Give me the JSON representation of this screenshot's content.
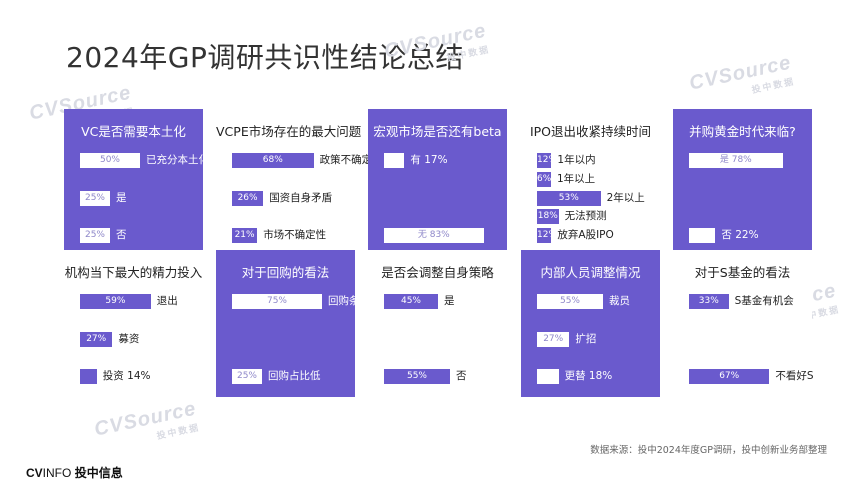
{
  "page_title": "2024年GP调研共识性结论总结",
  "watermark": {
    "text": "CVSource",
    "sub": "投中数据"
  },
  "source_note": "数据来源：投中2024年度GP调研，投中创新业务部整理",
  "logo": {
    "main": "CV",
    "rest": "INFO",
    "cn": "投中信息"
  },
  "colors": {
    "accent": "#6a5acd",
    "bar_text_on_white": "#8e87c9"
  },
  "chart_data": [
    {
      "type": "bar",
      "title": "VC是否需要本土化",
      "theme": "purple",
      "bars": [
        {
          "label": "已充分本土化",
          "value": 50,
          "text": "50%"
        },
        {
          "label": "是",
          "value": 25,
          "text": "25%"
        },
        {
          "label": "否",
          "value": 25,
          "text": "25%"
        }
      ]
    },
    {
      "type": "bar",
      "title": "VCPE市场存在的最大问题",
      "theme": "white",
      "bars": [
        {
          "label": "政策不确定性",
          "value": 68,
          "text": "68%"
        },
        {
          "label": "国资自身矛盾",
          "value": 26,
          "text": "26%"
        },
        {
          "label": "市场不确定性",
          "value": 21,
          "text": "21%"
        }
      ]
    },
    {
      "type": "bar",
      "title": "宏观市场是否还有beta",
      "theme": "purple",
      "bars": [
        {
          "label": "有",
          "value": 17,
          "text": "17%",
          "outside": true
        },
        {
          "label": "无",
          "value": 83,
          "text": "83%",
          "inside_label": true
        }
      ]
    },
    {
      "type": "bar",
      "title": "IPO退出收紧持续时间",
      "theme": "white",
      "bars": [
        {
          "label": "1年以内",
          "value": 12,
          "text": "12%"
        },
        {
          "label": "1年以上",
          "value": 6,
          "text": "6%"
        },
        {
          "label": "2年以上",
          "value": 53,
          "text": "53%"
        },
        {
          "label": "无法预测",
          "value": 18,
          "text": "18%"
        },
        {
          "label": "放弃A股IPO",
          "value": 12,
          "text": "12%"
        }
      ]
    },
    {
      "type": "bar",
      "title": "并购黄金时代来临?",
      "theme": "purple",
      "bars": [
        {
          "label": "是",
          "value": 78,
          "text": "78%",
          "inside_label": true
        },
        {
          "label": "否",
          "value": 22,
          "text": "22%",
          "outside": true
        }
      ]
    },
    {
      "type": "bar",
      "title": "机构当下最大的精力投入",
      "theme": "white",
      "bars": [
        {
          "label": "退出",
          "value": 59,
          "text": "59%"
        },
        {
          "label": "募资",
          "value": 27,
          "text": "27%"
        },
        {
          "label": "投资",
          "value": 14,
          "text": "14%",
          "outside": true
        }
      ]
    },
    {
      "type": "bar",
      "title": "对于回购的看法",
      "theme": "purple",
      "bars": [
        {
          "label": "回购条款有效",
          "value": 75,
          "text": "75%"
        },
        {
          "label": "回购占比低",
          "value": 25,
          "text": "25%"
        }
      ]
    },
    {
      "type": "bar",
      "title": "是否会调整自身策略",
      "theme": "white",
      "bars": [
        {
          "label": "是",
          "value": 45,
          "text": "45%"
        },
        {
          "label": "否",
          "value": 55,
          "text": "55%"
        }
      ]
    },
    {
      "type": "bar",
      "title": "内部人员调整情况",
      "theme": "purple",
      "bars": [
        {
          "label": "裁员",
          "value": 55,
          "text": "55%"
        },
        {
          "label": "扩招",
          "value": 27,
          "text": "27%"
        },
        {
          "label": "更替",
          "value": 18,
          "text": "18%",
          "outside": true
        }
      ]
    },
    {
      "type": "bar",
      "title": "对于S基金的看法",
      "theme": "white",
      "bars": [
        {
          "label": "S基金有机会",
          "value": 33,
          "text": "33%"
        },
        {
          "label": "不看好S",
          "value": 67,
          "text": "67%"
        }
      ]
    }
  ]
}
